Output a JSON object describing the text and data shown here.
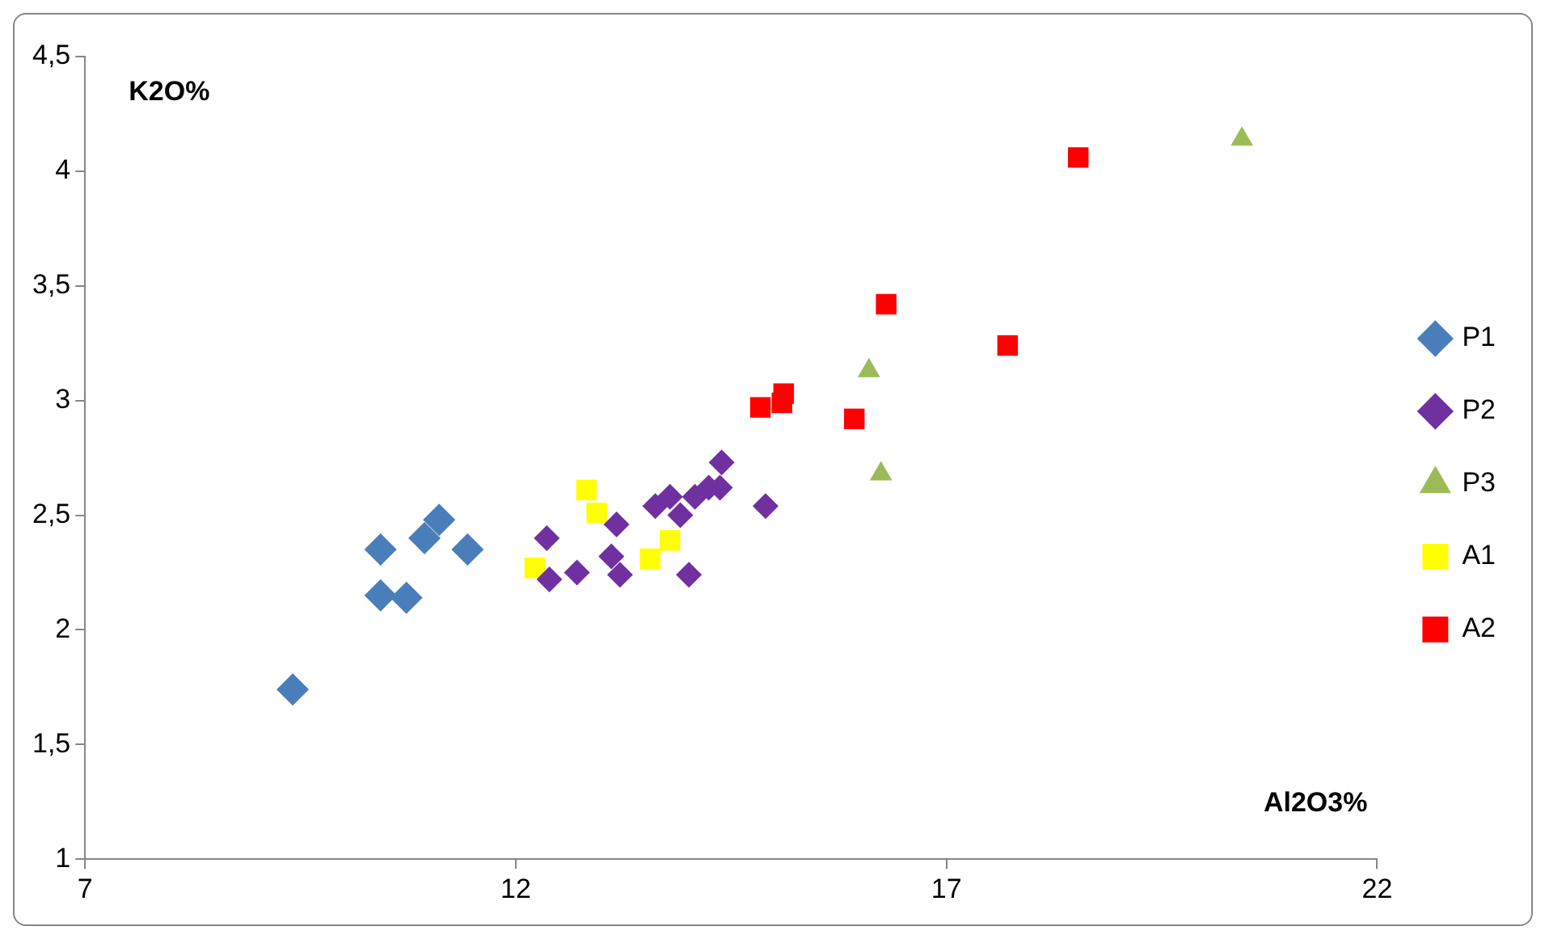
{
  "chart_data": {
    "type": "scatter",
    "xlabel": "Al2O3%",
    "ylabel": "K2O%",
    "xlim": [
      7,
      22
    ],
    "xticks": [
      7,
      12,
      17,
      22
    ],
    "ylim": [
      1,
      4.5
    ],
    "yticks": [
      1,
      {
        "value": 1.5,
        "label": "1,5"
      },
      2,
      {
        "value": 2.5,
        "label": "2,5"
      },
      3,
      {
        "value": 3.5,
        "label": "3,5"
      },
      4,
      {
        "value": 4.5,
        "label": "4,5"
      }
    ],
    "grid": false,
    "legend": "right",
    "series": [
      {
        "name": "P1",
        "color": "#4a7ebb",
        "marker": "diamond",
        "x": [
          9.41,
          10.43,
          10.43,
          10.73,
          10.94,
          11.11,
          11.44
        ],
        "values": [
          1.74,
          2.35,
          2.15,
          2.14,
          2.4,
          2.48,
          2.35
        ]
      },
      {
        "name": "P2",
        "color": "#7030a0",
        "marker": "diamond",
        "x": [
          12.36,
          12.39,
          12.71,
          13.17,
          13.11,
          13.21,
          14.01,
          13.62,
          13.79,
          13.91,
          14.08,
          14.24,
          14.37,
          14.39,
          14.9
        ],
        "values": [
          2.4,
          2.22,
          2.25,
          2.46,
          2.32,
          2.24,
          2.24,
          2.54,
          2.58,
          2.5,
          2.58,
          2.62,
          2.62,
          2.73,
          2.54
        ]
      },
      {
        "name": "P3",
        "color": "#9bbb59",
        "marker": "triangle",
        "x": [
          16.1,
          16.24,
          20.43
        ],
        "values": [
          3.13,
          2.68,
          4.14
        ]
      },
      {
        "name": "A1",
        "color": "#ffff00",
        "marker": "square",
        "x": [
          12.22,
          12.82,
          12.94,
          13.56,
          13.79
        ],
        "values": [
          2.27,
          2.61,
          2.51,
          2.31,
          2.39
        ]
      },
      {
        "name": "A2",
        "color": "#ff0000",
        "marker": "square",
        "x": [
          14.84,
          15.11,
          15.09,
          15.93,
          16.3,
          17.71,
          18.53
        ],
        "values": [
          2.97,
          3.03,
          2.99,
          2.92,
          3.42,
          3.24,
          4.06
        ]
      }
    ]
  }
}
